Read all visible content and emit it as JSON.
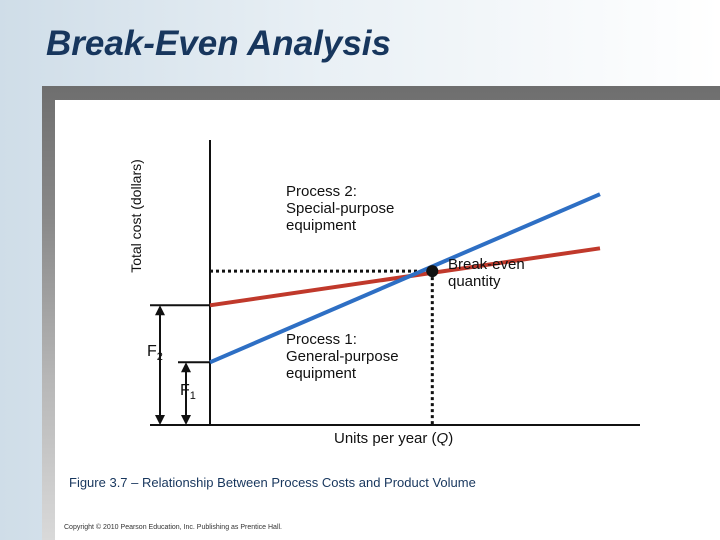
{
  "slide": {
    "title": "Break-Even Analysis",
    "caption": "Figure 3.7 – Relationship Between Process Costs and Product Volume",
    "copyright": "Copyright © 2010 Pearson Education, Inc. Publishing as Prentice Hall."
  },
  "chart_data": {
    "type": "line",
    "xlabel": "Units per year (",
    "xlabel_var": "Q",
    "xlabel_end": ")",
    "ylabel": "Total cost (dollars)",
    "grid": false,
    "series": [
      {
        "name_lines": [
          "Process 1:",
          "General-purpose",
          "equipment"
        ],
        "fixed_cost_label": "F",
        "fixed_cost_sub": "1",
        "color": "#2e6fc4",
        "x": [
          0,
          1.0
        ],
        "y": [
          0.22,
          0.81
        ]
      },
      {
        "name_lines": [
          "Process 2:",
          "Special-purpose",
          "equipment"
        ],
        "fixed_cost_label": "F",
        "fixed_cost_sub": "2",
        "color": "#c0392b",
        "x": [
          0,
          1.0
        ],
        "y": [
          0.42,
          0.62
        ]
      }
    ],
    "break_even": {
      "label_lines": [
        "Break-even",
        "quantity"
      ],
      "x": 0.57,
      "y": 0.54
    },
    "xlim": [
      0,
      1
    ],
    "ylim": [
      0,
      1
    ]
  }
}
